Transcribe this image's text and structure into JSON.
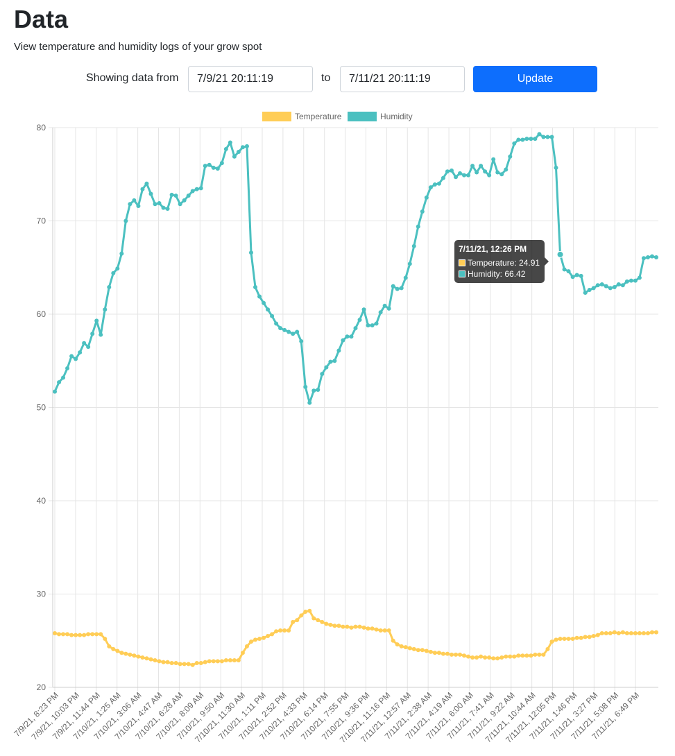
{
  "header": {
    "title": "Data",
    "subtitle": "View temperature and humidity logs of your grow spot"
  },
  "controls": {
    "from_label": "Showing data from",
    "from_value": "7/9/21 20:11:19",
    "to_label": "to",
    "to_value": "7/11/21 20:11:19",
    "update_label": "Update"
  },
  "colors": {
    "temperature": "#ffcd56",
    "humidity": "#4bc0c0",
    "button": "#0d6efd"
  },
  "tooltip": {
    "title": "7/11/21, 12:26 PM",
    "temperature": "Temperature: 24.91",
    "humidity": "Humidity: 66.42"
  },
  "chart_data": {
    "type": "line",
    "title": "",
    "xlabel": "",
    "ylabel": "",
    "ylim": [
      20,
      80
    ],
    "yticks": [
      20,
      30,
      40,
      50,
      60,
      70,
      80
    ],
    "grid": true,
    "legend": "top-center",
    "tick_labels": [
      "7/9/21, 8:23 PM",
      "7/9/21, 10:03 PM",
      "7/9/21, 11:44 PM",
      "7/10/21, 1:25 AM",
      "7/10/21, 3:06 AM",
      "7/10/21, 4:47 AM",
      "7/10/21, 6:28 AM",
      "7/10/21, 8:09 AM",
      "7/10/21, 9:50 AM",
      "7/10/21, 11:30 AM",
      "7/10/21, 1:11 PM",
      "7/10/21, 2:52 PM",
      "7/10/21, 4:33 PM",
      "7/10/21, 6:14 PM",
      "7/10/21, 7:55 PM",
      "7/10/21, 9:36 PM",
      "7/10/21, 11:16 PM",
      "7/11/21, 12:57 AM",
      "7/11/21, 2:38 AM",
      "7/11/21, 4:19 AM",
      "7/11/21, 6:00 AM",
      "7/11/21, 7:41 AM",
      "7/11/21, 9:22 AM",
      "7/11/21, 10:44 AM",
      "7/11/21, 12:05 PM",
      "7/11/21, 1:46 PM",
      "7/11/21, 3:27 PM",
      "7/11/21, 5:08 PM",
      "7/11/21, 6:49 PM"
    ],
    "series": [
      {
        "name": "Temperature",
        "values": [
          25.8,
          25.7,
          25.7,
          25.7,
          25.6,
          25.6,
          25.6,
          25.6,
          25.7,
          25.7,
          25.7,
          25.7,
          25.2,
          24.4,
          24.1,
          23.9,
          23.7,
          23.6,
          23.5,
          23.4,
          23.3,
          23.2,
          23.1,
          23.0,
          22.9,
          22.8,
          22.7,
          22.7,
          22.6,
          22.6,
          22.5,
          22.5,
          22.5,
          22.4,
          22.6,
          22.6,
          22.7,
          22.8,
          22.8,
          22.8,
          22.8,
          22.9,
          22.9,
          22.9,
          22.9,
          23.7,
          24.4,
          24.9,
          25.1,
          25.2,
          25.3,
          25.5,
          25.7,
          26.0,
          26.1,
          26.1,
          26.1,
          27.0,
          27.2,
          27.7,
          28.1,
          28.2,
          27.4,
          27.2,
          27.0,
          26.8,
          26.7,
          26.6,
          26.6,
          26.5,
          26.5,
          26.4,
          26.5,
          26.5,
          26.4,
          26.3,
          26.3,
          26.2,
          26.1,
          26.1,
          26.1,
          25.0,
          24.6,
          24.4,
          24.3,
          24.2,
          24.1,
          24.0,
          24.0,
          23.9,
          23.8,
          23.7,
          23.7,
          23.6,
          23.6,
          23.5,
          23.5,
          23.5,
          23.4,
          23.3,
          23.2,
          23.2,
          23.3,
          23.2,
          23.2,
          23.1,
          23.1,
          23.2,
          23.3,
          23.3,
          23.3,
          23.4,
          23.4,
          23.4,
          23.4,
          23.5,
          23.5,
          23.5,
          24.1,
          24.9,
          25.1,
          25.2,
          25.2,
          25.2,
          25.2,
          25.3,
          25.3,
          25.4,
          25.4,
          25.5,
          25.6,
          25.8,
          25.8,
          25.8,
          25.9,
          25.8,
          25.9,
          25.8,
          25.8,
          25.8,
          25.8,
          25.8,
          25.8,
          25.9,
          25.9
        ]
      },
      {
        "name": "Humidity",
        "values": [
          51.7,
          52.7,
          53.2,
          54.2,
          55.5,
          55.2,
          55.9,
          56.9,
          56.5,
          57.9,
          59.3,
          57.8,
          60.5,
          62.9,
          64.4,
          64.9,
          66.5,
          70.0,
          71.8,
          72.2,
          71.6,
          73.4,
          74.0,
          72.9,
          71.8,
          71.9,
          71.4,
          71.3,
          72.8,
          72.7,
          71.8,
          72.2,
          72.7,
          73.2,
          73.4,
          73.5,
          75.9,
          76.0,
          75.7,
          75.6,
          76.2,
          77.7,
          78.4,
          76.9,
          77.4,
          77.9,
          78.0,
          66.6,
          62.9,
          61.9,
          61.2,
          60.5,
          59.8,
          59.0,
          58.5,
          58.3,
          58.1,
          57.9,
          58.1,
          57.1,
          52.2,
          50.5,
          51.8,
          51.9,
          53.6,
          54.3,
          54.9,
          55.0,
          56.1,
          57.2,
          57.6,
          57.6,
          58.5,
          59.4,
          60.5,
          58.8,
          58.8,
          59.0,
          60.2,
          60.9,
          60.6,
          63.0,
          62.7,
          62.8,
          63.9,
          65.4,
          67.3,
          69.4,
          71.0,
          72.5,
          73.6,
          73.9,
          74.0,
          74.6,
          75.3,
          75.4,
          74.7,
          75.1,
          74.9,
          74.9,
          75.9,
          75.2,
          75.9,
          75.3,
          74.9,
          76.6,
          75.2,
          75.0,
          75.5,
          76.9,
          78.3,
          78.7,
          78.7,
          78.8,
          78.8,
          78.8,
          79.3,
          79.0,
          79.0,
          79.0,
          75.7,
          66.4,
          64.8,
          64.6,
          64.0,
          64.2,
          64.1,
          62.3,
          62.6,
          62.8,
          63.1,
          63.2,
          63.0,
          62.8,
          62.9,
          63.2,
          63.1,
          63.5,
          63.6,
          63.6,
          63.9,
          66.0,
          66.1,
          66.2,
          66.1
        ]
      }
    ]
  }
}
